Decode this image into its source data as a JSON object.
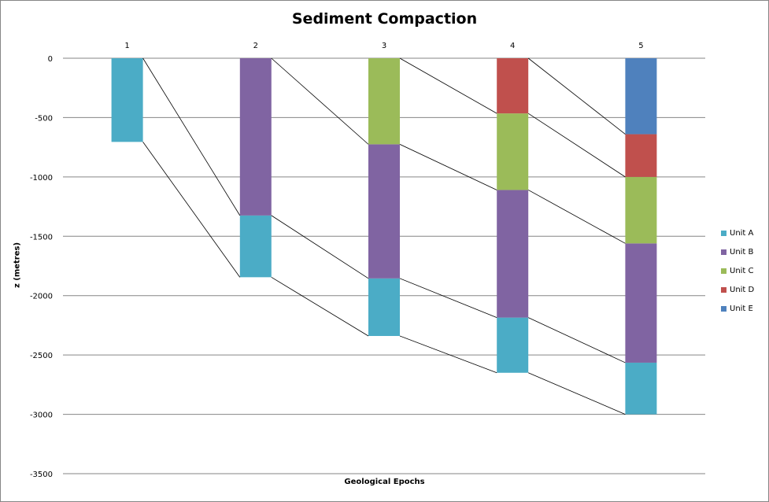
{
  "chart_data": {
    "type": "bar",
    "title": "Sediment Compaction",
    "xlabel": "Geological  Epochs",
    "ylabel": "z (metres)",
    "categories": [
      "1",
      "2",
      "3",
      "4",
      "5"
    ],
    "ylim": [
      -3500,
      0
    ],
    "yticks": [
      0,
      -500,
      -1000,
      -1500,
      -2000,
      -2500,
      -3000,
      -3500
    ],
    "grid": true,
    "legend_position": "right",
    "series": [
      {
        "name": "Unit A",
        "color": "#4BACC6",
        "tops": [
          0,
          -1325,
          -1855,
          -2185,
          -2565
        ],
        "bottoms": [
          -705,
          -1845,
          -2340,
          -2650,
          -3000
        ]
      },
      {
        "name": "Unit B",
        "color": "#8064A2",
        "tops": [
          null,
          0,
          -725,
          -1110,
          -1560
        ],
        "bottoms": [
          null,
          -1325,
          -1855,
          -2185,
          -2565
        ]
      },
      {
        "name": "Unit C",
        "color": "#9BBB59",
        "tops": [
          null,
          null,
          0,
          -465,
          -1000
        ],
        "bottoms": [
          null,
          null,
          -725,
          -1110,
          -1560
        ]
      },
      {
        "name": "Unit D",
        "color": "#C0504D",
        "tops": [
          null,
          null,
          null,
          0,
          -640
        ],
        "bottoms": [
          null,
          null,
          null,
          -465,
          -1000
        ]
      },
      {
        "name": "Unit E",
        "color": "#4F81BD",
        "tops": [
          null,
          null,
          null,
          null,
          0
        ],
        "bottoms": [
          null,
          null,
          null,
          null,
          -640
        ]
      }
    ]
  }
}
